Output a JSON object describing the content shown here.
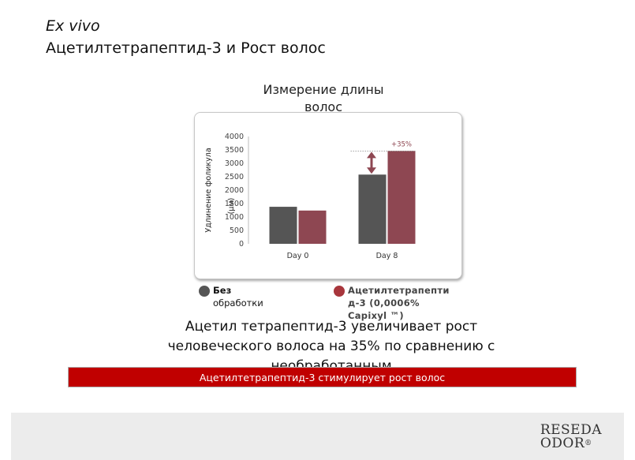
{
  "header": {
    "subtitle": "Ex vivo",
    "title": "Ацетилтетрапептид-3 и Рост волос"
  },
  "chart_title_line1": "Измерение длины",
  "chart_title_line2": "волос",
  "chart_data": {
    "type": "bar",
    "title": "Измерение длины волос",
    "ylabel_line1": "Удлинение фоликула",
    "ylabel_line2": "(µм)",
    "xlabel": "",
    "categories": [
      "Day 0",
      "Day 8"
    ],
    "yticks": [
      0,
      500,
      1000,
      1500,
      2000,
      2500,
      3000,
      3500,
      4000
    ],
    "ylim": [
      0,
      4000
    ],
    "series": [
      {
        "name": "Без обработки",
        "values": [
          1380,
          2580
        ],
        "color": "#555555"
      },
      {
        "name": "Ацетилтетрапептид-3 (0,0006% Capixyl ™)",
        "values": [
          1240,
          3460
        ],
        "color": "#8e4752"
      }
    ],
    "annotation": {
      "text": "+35%",
      "category": "Day 8",
      "color": "#8e4752"
    },
    "grid": false,
    "legend_position": "bottom"
  },
  "legend": {
    "left_bold": "Без",
    "left_rest": "обработки",
    "left_color": "#555555",
    "right_line1": "Ацетилтетрапепти",
    "right_line2": "д-3  (0,0006%",
    "right_line3": "Capixyl ™)",
    "right_color": "#a8363c"
  },
  "claim": {
    "line1": "Ацетил тетрапептид-3 увеличивает рост",
    "line2": "человеческого волоса на 35% по сравнению с",
    "line3": "необработанным"
  },
  "banner": {
    "text": "Ацетилтетрапептид-3 стимулирует рост волос",
    "color": "#c00000"
  },
  "logo": {
    "line1": "RESEDA",
    "line2": "ODOR",
    "mark": "®"
  }
}
